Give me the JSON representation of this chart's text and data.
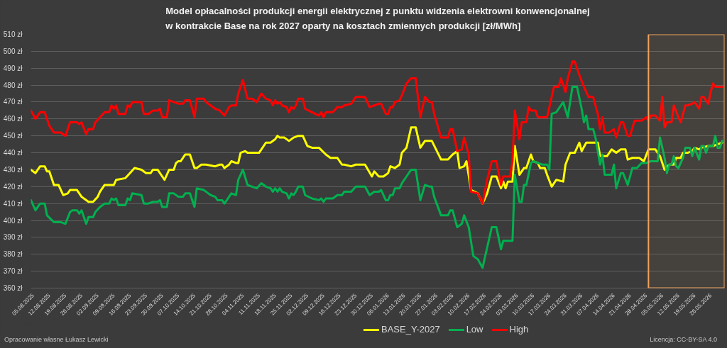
{
  "chart_data": {
    "type": "line",
    "title": "Model opłacalności produkcji energii elektrycznej z punktu widzenia elektrowni konwencjonalnej\nw kontrakcie Base na rok 2027 oparty na kosztach zmiennych produkcji [zł/MWh]",
    "series": [
      {
        "name": "BASE_Y-2027",
        "color": "#ffff00",
        "x": [
          "2025-08-04",
          "2025-08-06",
          "2025-08-08",
          "2025-08-10",
          "2025-08-11",
          "2025-08-12",
          "2025-08-14",
          "2025-08-16",
          "2025-08-18",
          "2025-08-20",
          "2025-08-21",
          "2025-08-24",
          "2025-08-26",
          "2025-08-27",
          "2025-08-29",
          "2025-08-31",
          "2025-09-02",
          "2025-09-03",
          "2025-09-05",
          "2025-09-08",
          "2025-09-09",
          "2025-09-10",
          "2025-09-14",
          "2025-09-16",
          "2025-09-18",
          "2025-09-21",
          "2025-09-23",
          "2025-09-25",
          "2025-09-26",
          "2025-09-28",
          "2025-10-01",
          "2025-10-03",
          "2025-10-05",
          "2025-10-06",
          "2025-10-07",
          "2025-10-08",
          "2025-10-10",
          "2025-10-12",
          "2025-10-14",
          "2025-10-15",
          "2025-10-17",
          "2025-10-19",
          "2025-10-23",
          "2025-10-25",
          "2025-10-26",
          "2025-10-27",
          "2025-10-29",
          "2025-10-30",
          "2025-11-01",
          "2025-11-02",
          "2025-11-03",
          "2025-11-05",
          "2025-11-06",
          "2025-11-11",
          "2025-11-12",
          "2025-11-14",
          "2025-11-16",
          "2025-11-18",
          "2025-11-19",
          "2025-11-20",
          "2025-11-22",
          "2025-11-24",
          "2025-11-26",
          "2025-11-28",
          "2025-11-30",
          "2025-12-02",
          "2025-12-04",
          "2025-12-07",
          "2025-12-10",
          "2025-12-12",
          "2025-12-15",
          "2025-12-17",
          "2025-12-18",
          "2025-12-21",
          "2025-12-23",
          "2025-12-27",
          "2025-12-30",
          "2025-12-31",
          "2026-01-02",
          "2026-01-04",
          "2026-01-06",
          "2026-01-07",
          "2026-01-09",
          "2026-01-11",
          "2026-01-12",
          "2026-01-14",
          "2026-01-16",
          "2026-01-18",
          "2026-01-20",
          "2026-01-22",
          "2026-01-25",
          "2026-01-29",
          "2026-02-01",
          "2026-02-03",
          "2026-02-05",
          "2026-02-06",
          "2026-02-08",
          "2026-02-09",
          "2026-02-11",
          "2026-02-14",
          "2026-02-16",
          "2026-02-18",
          "2026-02-20",
          "2026-02-22",
          "2026-02-24",
          "2026-02-25",
          "2026-02-26",
          "2026-02-27",
          "2026-03-01",
          "2026-03-02",
          "2026-03-04",
          "2026-03-06",
          "2026-03-07",
          "2026-03-09",
          "2026-03-10",
          "2026-03-12",
          "2026-03-13",
          "2026-03-15",
          "2026-03-16",
          "2026-03-18",
          "2026-03-20",
          "2026-03-23",
          "2026-03-24",
          "2026-03-26",
          "2026-03-28",
          "2026-03-30",
          "2026-03-31",
          "2026-04-02",
          "2026-04-07",
          "2026-04-08",
          "2026-04-11",
          "2026-04-13",
          "2026-04-15",
          "2026-04-17",
          "2026-04-19",
          "2026-04-20",
          "2026-04-22",
          "2026-04-25",
          "2026-04-27",
          "2026-04-29",
          "2026-05-02",
          "2026-05-04",
          "2026-05-06",
          "2026-05-08",
          "2026-05-10",
          "2026-05-11",
          "2026-05-13",
          "2026-05-14",
          "2026-05-16",
          "2026-05-18",
          "2026-05-19",
          "2026-05-21",
          "2026-05-22",
          "2026-05-25",
          "2026-05-27",
          "2026-05-29",
          "2026-05-31"
        ],
        "values": [
          430,
          428,
          432,
          432,
          429,
          429,
          421,
          421,
          415,
          416,
          418,
          418,
          414,
          413,
          411,
          411,
          414,
          417,
          421,
          421,
          421,
          424,
          425,
          428,
          431,
          430,
          428,
          428,
          430,
          430,
          424,
          430,
          430,
          434,
          435,
          435,
          439,
          439,
          431,
          431,
          433,
          433,
          432,
          433,
          433,
          431,
          433,
          435,
          434,
          434,
          440,
          441,
          440,
          440,
          442,
          446,
          446,
          448,
          450,
          449,
          449,
          447,
          449,
          450,
          450,
          444,
          443,
          443,
          439,
          437,
          437,
          433,
          433,
          432,
          433,
          433,
          426,
          429,
          426,
          426,
          428,
          432,
          431,
          433,
          440,
          443,
          455,
          455,
          443,
          447,
          447,
          436,
          436,
          439,
          441,
          431,
          432,
          435,
          418,
          416,
          410,
          416,
          426,
          426,
          419,
          423,
          419,
          423,
          423,
          444,
          427,
          431,
          431,
          439,
          435,
          434,
          431,
          431,
          427,
          420,
          424,
          423,
          433,
          440,
          440,
          446,
          441,
          446,
          446,
          438,
          438,
          442,
          440,
          442,
          442,
          436,
          437,
          437,
          435,
          442,
          442,
          438,
          430,
          433,
          433,
          437,
          437,
          440,
          440,
          441,
          443,
          442,
          443,
          444,
          444,
          445,
          446
        ]
      },
      {
        "name": "Low",
        "color": "#00b050",
        "x": [
          "2025-08-04",
          "2025-08-06",
          "2025-08-08",
          "2025-08-10",
          "2025-08-11",
          "2025-08-14",
          "2025-08-17",
          "2025-08-19",
          "2025-08-21",
          "2025-08-22",
          "2025-08-24",
          "2025-08-25",
          "2025-08-26",
          "2025-08-28",
          "2025-08-29",
          "2025-08-31",
          "2025-09-01",
          "2025-09-03",
          "2025-09-05",
          "2025-09-07",
          "2025-09-08",
          "2025-09-09",
          "2025-09-10",
          "2025-09-11",
          "2025-09-14",
          "2025-09-15",
          "2025-09-16",
          "2025-09-17",
          "2025-09-21",
          "2025-09-22",
          "2025-09-24",
          "2025-09-26",
          "2025-09-28",
          "2025-09-29",
          "2025-09-30",
          "2025-10-02",
          "2025-10-03",
          "2025-10-05",
          "2025-10-07",
          "2025-10-09",
          "2025-10-10",
          "2025-10-12",
          "2025-10-14",
          "2025-10-15",
          "2025-10-18",
          "2025-10-20",
          "2025-10-21",
          "2025-10-23",
          "2025-10-24",
          "2025-10-26",
          "2025-10-27",
          "2025-10-29",
          "2025-10-30",
          "2025-11-01",
          "2025-11-02",
          "2025-11-04",
          "2025-11-06",
          "2025-11-08",
          "2025-11-10",
          "2025-11-12",
          "2025-11-14",
          "2025-11-16",
          "2025-11-17",
          "2025-11-18",
          "2025-11-19",
          "2025-11-20",
          "2025-11-21",
          "2025-11-23",
          "2025-11-24",
          "2025-11-25",
          "2025-11-26",
          "2025-11-27",
          "2025-11-28",
          "2025-11-30",
          "2025-12-01",
          "2025-12-04",
          "2025-12-07",
          "2025-12-08",
          "2025-12-09",
          "2025-12-10",
          "2025-12-13",
          "2025-12-15",
          "2025-12-17",
          "2025-12-18",
          "2025-12-21",
          "2025-12-23",
          "2025-12-27",
          "2025-12-29",
          "2025-12-31",
          "2026-01-02",
          "2026-01-03",
          "2026-01-05",
          "2026-01-06",
          "2026-01-07",
          "2026-01-08",
          "2026-01-09",
          "2026-01-11",
          "2026-01-12",
          "2026-01-14",
          "2026-01-16",
          "2026-01-18",
          "2026-01-20",
          "2026-01-22",
          "2026-01-24",
          "2026-01-25",
          "2026-01-26",
          "2026-01-29",
          "2026-02-01",
          "2026-02-02",
          "2026-02-03",
          "2026-02-05",
          "2026-02-07",
          "2026-02-08",
          "2026-02-10",
          "2026-02-12",
          "2026-02-14",
          "2026-02-16",
          "2026-02-18",
          "2026-02-20",
          "2026-02-22",
          "2026-02-24",
          "2026-02-25",
          "2026-03-01",
          "2026-03-02",
          "2026-03-04",
          "2026-03-05",
          "2026-03-06",
          "2026-03-07",
          "2026-03-09",
          "2026-03-10",
          "2026-03-12",
          "2026-03-14",
          "2026-03-16",
          "2026-03-17",
          "2026-03-18",
          "2026-03-20",
          "2026-03-23",
          "2026-03-25",
          "2026-03-26",
          "2026-03-27",
          "2026-03-29",
          "2026-03-31",
          "2026-04-01",
          "2026-04-02",
          "2026-04-03",
          "2026-04-05",
          "2026-04-06",
          "2026-04-08",
          "2026-04-09",
          "2026-04-10",
          "2026-04-13",
          "2026-04-14",
          "2026-04-15",
          "2026-04-17",
          "2026-04-18",
          "2026-04-20",
          "2026-04-22",
          "2026-04-24",
          "2026-04-26",
          "2026-04-28",
          "2026-04-30",
          "2026-05-03",
          "2026-05-04",
          "2026-05-06",
          "2026-05-07",
          "2026-05-08",
          "2026-05-09",
          "2026-05-10",
          "2026-05-11",
          "2026-05-12",
          "2026-05-14",
          "2026-05-15",
          "2026-05-17",
          "2026-05-18",
          "2026-05-19",
          "2026-05-21",
          "2026-05-22",
          "2026-05-23",
          "2026-05-24",
          "2026-05-25",
          "2026-05-27",
          "2026-05-28",
          "2026-05-29",
          "2026-05-30",
          "2026-05-31"
        ],
        "values": [
          412,
          406,
          410,
          410,
          403,
          399,
          399,
          398,
          405,
          406,
          406,
          404,
          406,
          398,
          402,
          402,
          405,
          408,
          410,
          410,
          413,
          412,
          413,
          409,
          409,
          413,
          412,
          416,
          415,
          410,
          410,
          411,
          411,
          412,
          408,
          408,
          416,
          416,
          414,
          414,
          416,
          416,
          408,
          419,
          418,
          416,
          415,
          414,
          412,
          412,
          410,
          414,
          416,
          415,
          424,
          430,
          421,
          420,
          419,
          422,
          420,
          419,
          417,
          419,
          417,
          419,
          417,
          416,
          413,
          416,
          415,
          417,
          420,
          420,
          415,
          413,
          412,
          413,
          411,
          413,
          413,
          415,
          415,
          417,
          417,
          420,
          420,
          415,
          417,
          417,
          418,
          412,
          412,
          415,
          415,
          419,
          419,
          422,
          426,
          430,
          430,
          412,
          421,
          420,
          420,
          414,
          403,
          403,
          406,
          406,
          396,
          398,
          403,
          396,
          379,
          377,
          372,
          384,
          396,
          396,
          383,
          388,
          388,
          427,
          411,
          411,
          421,
          421,
          434,
          435,
          434,
          433,
          433,
          430,
          463,
          464,
          470,
          461,
          470,
          479,
          479,
          466,
          458,
          462,
          454,
          454,
          449,
          433,
          439,
          427,
          427,
          433,
          419,
          428,
          428,
          421,
          431,
          431,
          434,
          434,
          435,
          435,
          449,
          437,
          428,
          433,
          433,
          438,
          432,
          431,
          437,
          443,
          443,
          438,
          443,
          436,
          444,
          444,
          440,
          444,
          444,
          450,
          443,
          443,
          447
        ]
      },
      {
        "name": "High",
        "color": "#ff0000",
        "x": [
          "2025-08-04",
          "2025-08-06",
          "2025-08-08",
          "2025-08-10",
          "2025-08-12",
          "2025-08-14",
          "2025-08-17",
          "2025-08-19",
          "2025-08-21",
          "2025-08-22",
          "2025-08-24",
          "2025-08-25",
          "2025-08-26",
          "2025-08-28",
          "2025-08-29",
          "2025-08-31",
          "2025-09-01",
          "2025-09-03",
          "2025-09-05",
          "2025-09-07",
          "2025-09-08",
          "2025-09-09",
          "2025-09-10",
          "2025-09-11",
          "2025-09-14",
          "2025-09-15",
          "2025-09-16",
          "2025-09-17",
          "2025-09-21",
          "2025-09-22",
          "2025-09-24",
          "2025-09-26",
          "2025-09-28",
          "2025-09-29",
          "2025-09-30",
          "2025-10-02",
          "2025-10-03",
          "2025-10-05",
          "2025-10-07",
          "2025-10-09",
          "2025-10-10",
          "2025-10-12",
          "2025-10-14",
          "2025-10-15",
          "2025-10-18",
          "2025-10-19",
          "2025-10-21",
          "2025-10-23",
          "2025-10-25",
          "2025-10-27",
          "2025-10-29",
          "2025-10-30",
          "2025-11-01",
          "2025-11-02",
          "2025-11-04",
          "2025-11-06",
          "2025-11-08",
          "2025-11-10",
          "2025-11-12",
          "2025-11-14",
          "2025-11-16",
          "2025-11-17",
          "2025-11-18",
          "2025-11-19",
          "2025-11-20",
          "2025-11-21",
          "2025-11-23",
          "2025-11-24",
          "2025-11-25",
          "2025-11-26",
          "2025-11-27",
          "2025-11-28",
          "2025-11-30",
          "2025-12-01",
          "2025-12-04",
          "2025-12-07",
          "2025-12-08",
          "2025-12-09",
          "2025-12-10",
          "2025-12-13",
          "2025-12-15",
          "2025-12-17",
          "2025-12-18",
          "2025-12-21",
          "2025-12-23",
          "2025-12-27",
          "2025-12-29",
          "2025-12-31",
          "2026-01-02",
          "2026-01-03",
          "2026-01-05",
          "2026-01-06",
          "2026-01-07",
          "2026-01-08",
          "2026-01-09",
          "2026-01-11",
          "2026-01-12",
          "2026-01-14",
          "2026-01-16",
          "2026-01-18",
          "2026-01-20",
          "2026-01-22",
          "2026-01-24",
          "2026-01-25",
          "2026-01-26",
          "2026-01-29",
          "2026-02-01",
          "2026-02-02",
          "2026-02-03",
          "2026-02-05",
          "2026-02-07",
          "2026-02-08",
          "2026-02-10",
          "2026-02-11",
          "2026-02-14",
          "2026-02-16",
          "2026-02-18",
          "2026-02-20",
          "2026-02-22",
          "2026-02-24",
          "2026-02-25",
          "2026-02-28",
          "2026-03-01",
          "2026-03-02",
          "2026-03-04",
          "2026-03-05",
          "2026-03-07",
          "2026-03-08",
          "2026-03-09",
          "2026-03-11",
          "2026-03-12",
          "2026-03-16",
          "2026-03-19",
          "2026-03-21",
          "2026-03-22",
          "2026-03-24",
          "2026-03-25",
          "2026-03-27",
          "2026-03-28",
          "2026-03-30",
          "2026-04-01",
          "2026-04-03",
          "2026-04-05",
          "2026-04-07",
          "2026-04-08",
          "2026-04-09",
          "2026-04-10",
          "2026-04-12",
          "2026-04-14",
          "2026-04-15",
          "2026-04-17",
          "2026-04-18",
          "2026-04-20",
          "2026-04-21",
          "2026-04-23",
          "2026-04-26",
          "2026-04-28",
          "2026-04-29",
          "2026-04-30",
          "2026-05-02",
          "2026-05-04",
          "2026-05-05",
          "2026-05-06",
          "2026-05-07",
          "2026-05-09",
          "2026-05-10",
          "2026-05-12",
          "2026-05-13",
          "2026-05-15",
          "2026-05-16",
          "2026-05-18",
          "2026-05-19",
          "2026-05-21",
          "2026-05-22",
          "2026-05-23",
          "2026-05-25",
          "2026-05-26",
          "2026-05-27",
          "2026-05-28",
          "2026-05-31"
        ],
        "values": [
          465,
          460,
          464,
          464,
          456,
          452,
          452,
          450,
          458,
          458,
          458,
          457,
          458,
          451,
          454,
          454,
          458,
          461,
          464,
          464,
          468,
          466,
          468,
          463,
          463,
          468,
          467,
          470,
          470,
          463,
          463,
          465,
          465,
          466,
          461,
          461,
          471,
          470,
          469,
          469,
          471,
          471,
          461,
          472,
          472,
          470,
          468,
          466,
          465,
          462,
          467,
          468,
          468,
          475,
          483,
          472,
          472,
          470,
          475,
          472,
          471,
          468,
          471,
          469,
          470,
          468,
          467,
          464,
          467,
          466,
          468,
          472,
          472,
          466,
          464,
          462,
          464,
          461,
          464,
          464,
          467,
          467,
          468,
          469,
          473,
          473,
          467,
          468,
          469,
          469,
          463,
          463,
          467,
          467,
          470,
          471,
          474,
          481,
          484,
          484,
          461,
          473,
          470,
          470,
          463,
          449,
          449,
          454,
          454,
          441,
          442,
          449,
          439,
          417,
          416,
          410,
          424,
          435,
          435,
          421,
          426,
          426,
          435,
          465,
          448,
          458,
          458,
          467,
          465,
          465,
          461,
          461,
          479,
          479,
          484,
          476,
          484,
          494,
          494,
          486,
          479,
          473,
          473,
          463,
          454,
          461,
          452,
          452,
          454,
          449,
          458,
          458,
          450,
          450,
          459,
          459,
          461,
          459,
          462,
          462,
          459,
          473,
          455,
          458,
          458,
          468,
          461,
          458,
          468,
          468,
          469,
          470,
          466,
          473,
          473,
          469,
          476,
          481,
          479,
          479
        ]
      }
    ],
    "xlim": [
      "2025-08-04",
      "2026-06-01"
    ],
    "xticks": [
      {
        "value": "2025-08-05",
        "label": "05.08.2025"
      },
      {
        "value": "2025-08-12",
        "label": "12.08.2025"
      },
      {
        "value": "2025-08-19",
        "label": "19.08.2025"
      },
      {
        "value": "2025-08-26",
        "label": "26.08.2025"
      },
      {
        "value": "2025-09-02",
        "label": "02.09.2025"
      },
      {
        "value": "2025-09-09",
        "label": "09.09.2025"
      },
      {
        "value": "2025-09-16",
        "label": "16.09.2025"
      },
      {
        "value": "2025-09-23",
        "label": "23.09.2025"
      },
      {
        "value": "2025-09-30",
        "label": "30.09.2025"
      },
      {
        "value": "2025-10-07",
        "label": "07.10.2025"
      },
      {
        "value": "2025-10-14",
        "label": "14.10.2025"
      },
      {
        "value": "2025-10-21",
        "label": "21.10.2025"
      },
      {
        "value": "2025-10-28",
        "label": "28.10.2025"
      },
      {
        "value": "2025-11-04",
        "label": "04.11.2025"
      },
      {
        "value": "2025-11-11",
        "label": "11.11.2025"
      },
      {
        "value": "2025-11-18",
        "label": "18.11.2025"
      },
      {
        "value": "2025-11-25",
        "label": "25.11.2025"
      },
      {
        "value": "2025-12-02",
        "label": "02.12.2025"
      },
      {
        "value": "2025-12-09",
        "label": "09.12.2025"
      },
      {
        "value": "2025-12-16",
        "label": "16.12.2025"
      },
      {
        "value": "2025-12-23",
        "label": "23.12.2025"
      },
      {
        "value": "2025-12-30",
        "label": "30.12.2025"
      },
      {
        "value": "2026-01-06",
        "label": "06.01.2026"
      },
      {
        "value": "2026-01-13",
        "label": "13.01.2026"
      },
      {
        "value": "2026-01-20",
        "label": "20.01.2026"
      },
      {
        "value": "2026-01-27",
        "label": "27.01.2026"
      },
      {
        "value": "2026-02-03",
        "label": "03.02.2026"
      },
      {
        "value": "2026-02-10",
        "label": "10.02.2026"
      },
      {
        "value": "2026-02-17",
        "label": "17.02.2026"
      },
      {
        "value": "2026-02-24",
        "label": "24.02.2026"
      },
      {
        "value": "2026-03-03",
        "label": "03.03.2026"
      },
      {
        "value": "2026-03-10",
        "label": "10.03.2026"
      },
      {
        "value": "2026-03-17",
        "label": "17.03.2026"
      },
      {
        "value": "2026-03-24",
        "label": "24.03.2026"
      },
      {
        "value": "2026-03-31",
        "label": "31.03.2026"
      },
      {
        "value": "2026-04-07",
        "label": "07.04.2026"
      },
      {
        "value": "2026-04-14",
        "label": "14.04.2026"
      },
      {
        "value": "2026-04-21",
        "label": "21.04.2026"
      },
      {
        "value": "2026-04-28",
        "label": "28.04.2026"
      },
      {
        "value": "2026-05-05",
        "label": "05.05.2026"
      },
      {
        "value": "2026-05-12",
        "label": "12.05.2026"
      },
      {
        "value": "2026-05-19",
        "label": "19.05.2026"
      },
      {
        "value": "2026-05-26",
        "label": "26.05.2026"
      }
    ],
    "ylim": [
      360,
      510
    ],
    "yticks": [
      {
        "value": 360,
        "label": "360 zł"
      },
      {
        "value": 370,
        "label": "370 zł"
      },
      {
        "value": 380,
        "label": "380 zł"
      },
      {
        "value": 390,
        "label": "390 zł"
      },
      {
        "value": 400,
        "label": "400 zł"
      },
      {
        "value": 410,
        "label": "410 zł"
      },
      {
        "value": 420,
        "label": "420 zł"
      },
      {
        "value": 430,
        "label": "430 zł"
      },
      {
        "value": 440,
        "label": "440 zł"
      },
      {
        "value": 450,
        "label": "450 zł"
      },
      {
        "value": 460,
        "label": "460 zł"
      },
      {
        "value": 470,
        "label": "470 zł"
      },
      {
        "value": 480,
        "label": "480 zł"
      },
      {
        "value": 490,
        "label": "490 zł"
      },
      {
        "value": 500,
        "label": "500 zł"
      },
      {
        "value": 510,
        "label": "510 zł"
      }
    ],
    "grid": "y",
    "legend": "bottom",
    "line_style": "solid",
    "bands": [
      {
        "axis": "x",
        "from": "2026-04-29",
        "to": "2026-06-01",
        "color": "#f0a35e"
      }
    ],
    "annotations": [
      "Opracowanie własne Łukasz Lewicki",
      "Licencja: CC-BY-SA 4.0"
    ]
  }
}
